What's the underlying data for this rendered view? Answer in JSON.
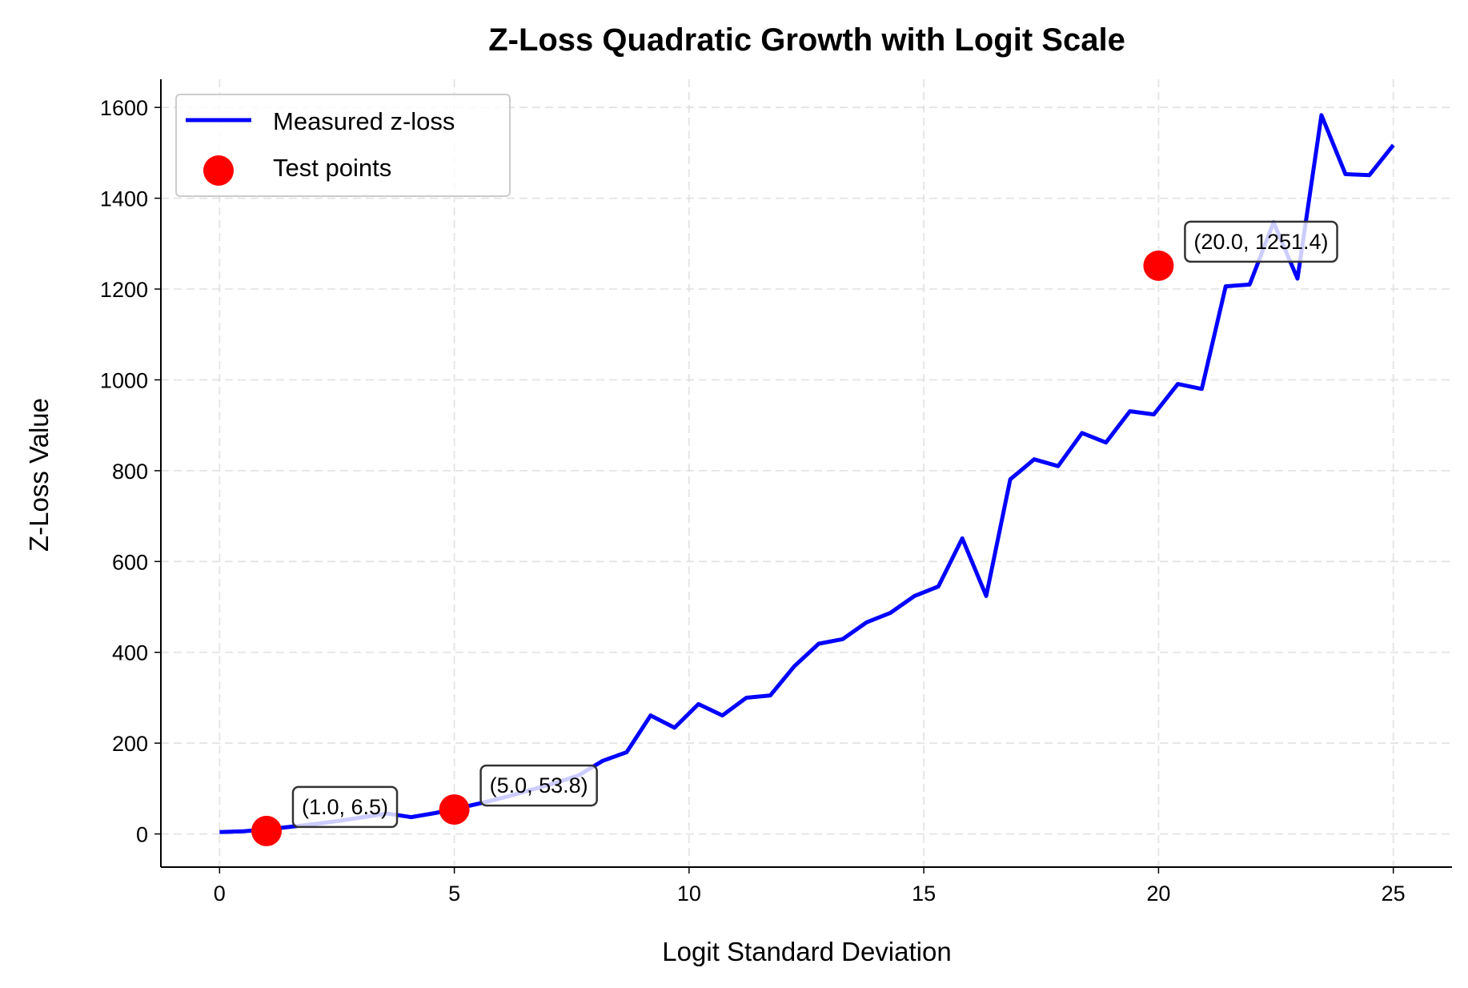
{
  "chart_data": {
    "type": "line",
    "title": "Z-Loss Quadratic Growth with Logit Scale",
    "xlabel": "Logit Standard Deviation",
    "ylabel": "Z-Loss Value",
    "xlim": [
      -1.25,
      26.25
    ],
    "ylim": [
      -73,
      1662
    ],
    "xticks": [
      0,
      5,
      10,
      15,
      20,
      25
    ],
    "yticks": [
      0,
      200,
      400,
      600,
      800,
      1000,
      1200,
      1400,
      1600
    ],
    "grid": true,
    "legend_position": "top-left",
    "series": [
      {
        "name": "Measured z-loss",
        "type": "line",
        "color": "#0000ff",
        "x": [
          0.0,
          0.51,
          1.02,
          1.53,
          2.04,
          2.55,
          3.06,
          3.57,
          4.08,
          4.59,
          5.1,
          5.61,
          6.12,
          6.63,
          7.14,
          7.65,
          8.16,
          8.67,
          9.18,
          9.69,
          10.2,
          10.71,
          11.22,
          11.73,
          12.24,
          12.76,
          13.27,
          13.78,
          14.29,
          14.8,
          15.31,
          15.82,
          16.33,
          16.84,
          17.35,
          17.86,
          18.37,
          18.88,
          19.39,
          19.9,
          20.41,
          20.92,
          21.43,
          21.94,
          22.45,
          22.96,
          23.47,
          23.98,
          24.49,
          25.0
        ],
        "y": [
          4,
          6,
          10,
          16,
          22,
          29,
          37,
          45,
          37,
          46,
          57,
          69,
          82,
          97,
          112,
          129,
          161,
          180,
          261,
          234,
          286,
          261,
          300,
          305,
          369,
          419,
          429,
          466,
          487,
          524,
          545,
          651,
          524,
          781,
          825,
          810,
          883,
          862,
          931,
          924,
          991,
          980,
          1206,
          1210,
          1347,
          1223,
          1583,
          1453,
          1451,
          1517
        ]
      },
      {
        "name": "Test points",
        "type": "scatter",
        "color": "#ff0000",
        "x": [
          1.0,
          5.0,
          20.0
        ],
        "y": [
          6.5,
          53.8,
          1251.4
        ]
      }
    ],
    "annotations": [
      "(1.0, 6.5)",
      "(5.0, 53.8)",
      "(20.0, 1251.4)"
    ]
  }
}
